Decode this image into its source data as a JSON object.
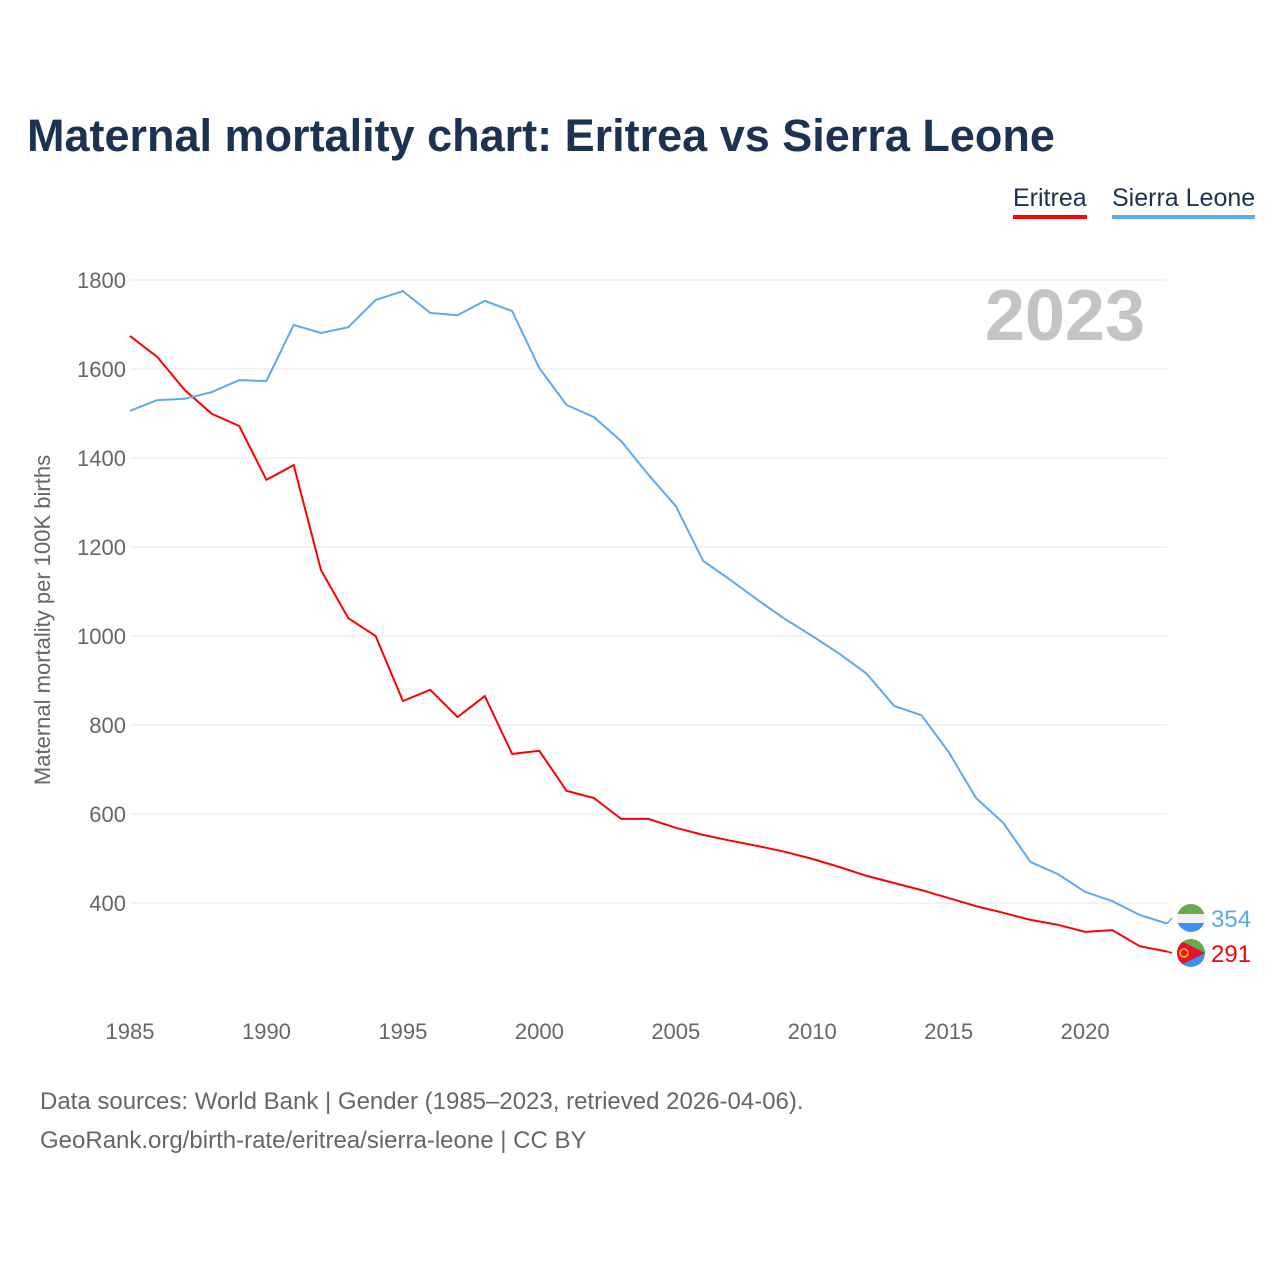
{
  "title": "Maternal mortality chart: Eritrea vs Sierra Leone",
  "footer": {
    "line1": "Data sources: World Bank | Gender (1985–2023, retrieved 2026-04-06).",
    "line2": "GeoRank.org/birth-rate/eritrea/sierra-leone | CC BY"
  },
  "chart_data": {
    "type": "line",
    "title": "Maternal mortality chart: Eritrea vs Sierra Leone",
    "xlabel": "",
    "ylabel": "Maternal mortality per 100K births",
    "year_label": "2023",
    "xlim": [
      1985,
      2023
    ],
    "ylim": [
      200,
      1800
    ],
    "xticks": [
      1985,
      1990,
      1995,
      2000,
      2005,
      2010,
      2015,
      2020
    ],
    "yticks": [
      400,
      600,
      800,
      1000,
      1200,
      1400,
      1600,
      1800
    ],
    "grid": true,
    "legend_placement": "top-right",
    "x": [
      1985,
      1986,
      1987,
      1988,
      1989,
      1990,
      1991,
      1992,
      1993,
      1994,
      1995,
      1996,
      1997,
      1998,
      1999,
      2000,
      2001,
      2002,
      2003,
      2004,
      2005,
      2006,
      2007,
      2008,
      2009,
      2010,
      2011,
      2012,
      2013,
      2014,
      2015,
      2016,
      2017,
      2018,
      2019,
      2020,
      2021,
      2022,
      2023
    ],
    "series": [
      {
        "name": "Eritrea",
        "color": "#ff0000",
        "end_label": "291",
        "values": [
          1674,
          1627,
          1553,
          1499,
          1472,
          1351,
          1384,
          1148,
          1040,
          1000,
          854,
          879,
          818,
          865,
          735,
          742,
          652,
          636,
          589,
          589,
          569,
          553,
          540,
          528,
          515,
          499,
          481,
          461,
          445,
          429,
          411,
          393,
          378,
          362,
          351,
          335,
          339,
          303,
          291
        ]
      },
      {
        "name": "Sierra Leone",
        "color": "#5ea8ee",
        "end_label": "354",
        "values": [
          1506,
          1530,
          1533,
          1548,
          1575,
          1573,
          1699,
          1681,
          1694,
          1755,
          1775,
          1726,
          1721,
          1753,
          1730,
          1602,
          1519,
          1492,
          1438,
          1362,
          1292,
          1169,
          1126,
          1081,
          1038,
          1000,
          960,
          915,
          843,
          822,
          739,
          636,
          580,
          492,
          465,
          425,
          404,
          373,
          354
        ]
      }
    ]
  }
}
